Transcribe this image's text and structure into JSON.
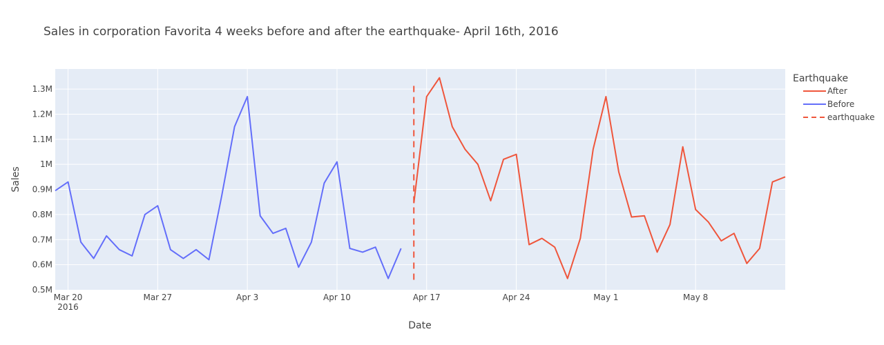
{
  "chart_data": {
    "type": "line",
    "title": "Sales in corporation Favorita 4 weeks before and after the earthquake- April 16th, 2016",
    "xlabel": "Date",
    "ylabel": "Sales",
    "xlim": [
      "2016-03-19",
      "2016-05-15"
    ],
    "ylim": [
      500000,
      1380000
    ],
    "x_ticks": [
      {
        "date": "2016-03-20",
        "label": "Mar 20",
        "sublabel": "2016"
      },
      {
        "date": "2016-03-27",
        "label": "Mar 27"
      },
      {
        "date": "2016-04-03",
        "label": "Apr 3"
      },
      {
        "date": "2016-04-10",
        "label": "Apr 10"
      },
      {
        "date": "2016-04-17",
        "label": "Apr 17"
      },
      {
        "date": "2016-04-24",
        "label": "Apr 24"
      },
      {
        "date": "2016-05-01",
        "label": "May 1"
      },
      {
        "date": "2016-05-08",
        "label": "May 8"
      }
    ],
    "y_ticks": [
      {
        "value": 500000,
        "label": "0.5M"
      },
      {
        "value": 600000,
        "label": "0.6M"
      },
      {
        "value": 700000,
        "label": "0.7M"
      },
      {
        "value": 800000,
        "label": "0.8M"
      },
      {
        "value": 900000,
        "label": "0.9M"
      },
      {
        "value": 1000000,
        "label": "1M"
      },
      {
        "value": 1100000,
        "label": "1.1M"
      },
      {
        "value": 1200000,
        "label": "1.2M"
      },
      {
        "value": 1300000,
        "label": "1.3M"
      }
    ],
    "legend": {
      "title": "Earthquake",
      "position": "right"
    },
    "grid": true,
    "series": [
      {
        "name": "After",
        "color": "#EF553B",
        "x": [
          "2016-04-16",
          "2016-04-17",
          "2016-04-18",
          "2016-04-19",
          "2016-04-20",
          "2016-04-21",
          "2016-04-22",
          "2016-04-23",
          "2016-04-24",
          "2016-04-25",
          "2016-04-26",
          "2016-04-27",
          "2016-04-28",
          "2016-04-29",
          "2016-04-30",
          "2016-05-01",
          "2016-05-02",
          "2016-05-03",
          "2016-05-04",
          "2016-05-05",
          "2016-05-06",
          "2016-05-07",
          "2016-05-08",
          "2016-05-09",
          "2016-05-10",
          "2016-05-11",
          "2016-05-12",
          "2016-05-13",
          "2016-05-14",
          "2016-05-15"
        ],
        "values": [
          845000,
          1270000,
          1345000,
          1150000,
          1060000,
          1000000,
          855000,
          1020000,
          1040000,
          680000,
          705000,
          670000,
          545000,
          705000,
          1060000,
          1270000,
          970000,
          790000,
          795000,
          650000,
          760000,
          1070000,
          820000,
          770000,
          695000,
          725000,
          605000,
          665000,
          930000,
          950000
        ]
      },
      {
        "name": "Before",
        "color": "#636EFA",
        "x": [
          "2016-03-19",
          "2016-03-20",
          "2016-03-21",
          "2016-03-22",
          "2016-03-23",
          "2016-03-24",
          "2016-03-25",
          "2016-03-26",
          "2016-03-27",
          "2016-03-28",
          "2016-03-29",
          "2016-03-30",
          "2016-03-31",
          "2016-04-01",
          "2016-04-02",
          "2016-04-03",
          "2016-04-04",
          "2016-04-05",
          "2016-04-06",
          "2016-04-07",
          "2016-04-08",
          "2016-04-09",
          "2016-04-10",
          "2016-04-11",
          "2016-04-12",
          "2016-04-13",
          "2016-04-14",
          "2016-04-15"
        ],
        "values": [
          895000,
          930000,
          690000,
          625000,
          715000,
          660000,
          635000,
          800000,
          835000,
          660000,
          625000,
          660000,
          620000,
          875000,
          1150000,
          1270000,
          795000,
          725000,
          745000,
          590000,
          690000,
          925000,
          1010000,
          665000,
          650000,
          670000,
          545000,
          665000
        ]
      },
      {
        "name": "earthquake",
        "color": "#EF553B",
        "dash": "dash",
        "x": [
          "2016-04-16",
          "2016-04-16"
        ],
        "values": [
          540000,
          1330000
        ]
      }
    ]
  }
}
